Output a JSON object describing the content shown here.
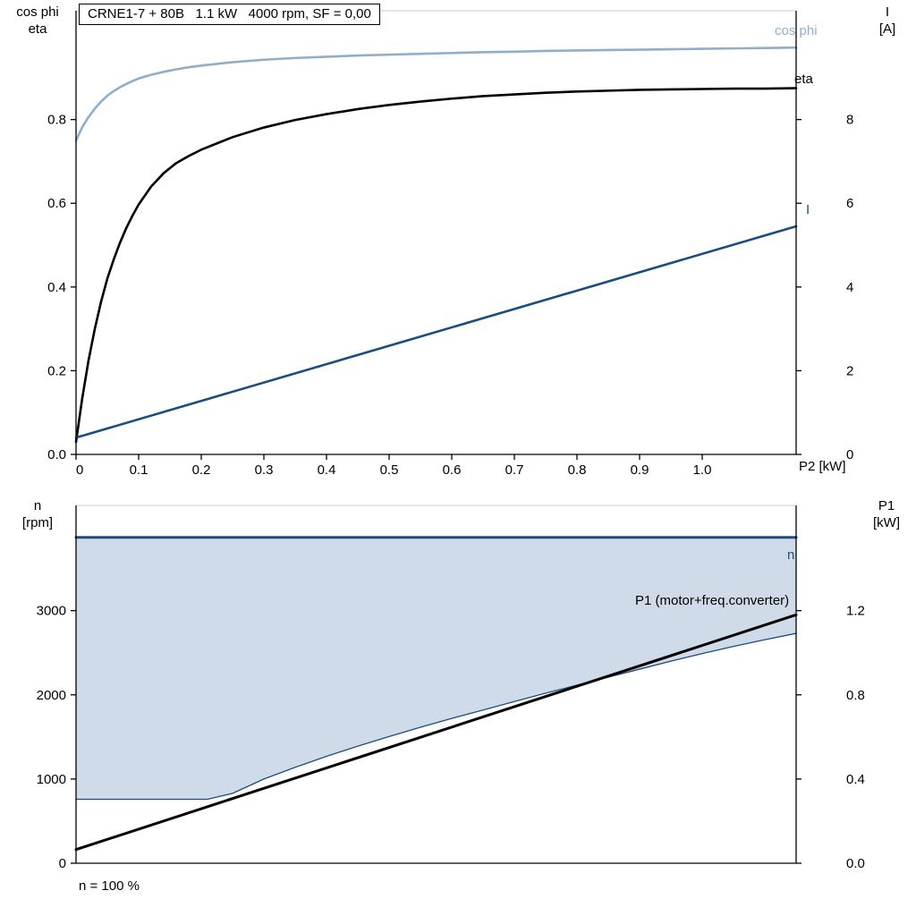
{
  "title_box": {
    "text": "CRNE1-7 + 80B   1.1 kW   4000 rpm, SF = 0,00"
  },
  "colors": {
    "light_blue": "#8FAEC9",
    "dark_blue": "#1B4E7E",
    "black": "#000000",
    "area_fill": "#CFDBE8"
  },
  "labels": {
    "top_left_line1": "cos phi",
    "top_left_line2": "eta",
    "top_right_line1": "I",
    "top_right_line2": "[A]",
    "x_axis_title": "P2 [kW]",
    "curve_cos_phi": "cos phi",
    "curve_eta": "eta",
    "curve_current": "I",
    "bottom_left_line1": "n",
    "bottom_left_line2": "[rpm]",
    "bottom_right_line1": "P1",
    "bottom_right_line2": "[kW]",
    "curve_speed": "n",
    "curve_p1": "P1 (motor+freq.converter)",
    "footnote": "n = 100 %"
  },
  "chart_data": [
    {
      "type": "line",
      "title": "CRNE1-7 + 80B   1.1 kW   4000 rpm, SF = 0,00",
      "x": {
        "min": 0,
        "max": 1.15,
        "label": "P2 [kW]",
        "ticks": [
          0,
          0.1,
          0.2,
          0.3,
          0.4,
          0.5,
          0.6,
          0.7,
          0.8,
          0.9,
          1.0
        ],
        "tick_labels": [
          "0",
          "0.1",
          "0.2",
          "0.3",
          "0.4",
          "0.5",
          "0.6",
          "0.7",
          "0.8",
          "0.9",
          "1.0"
        ]
      },
      "y_left": {
        "min": 0,
        "max": 1.06,
        "label": "cos phi / eta",
        "ticks": [
          0,
          0.2,
          0.4,
          0.6,
          0.8
        ],
        "tick_labels": [
          "0.0",
          "0.2",
          "0.4",
          "0.6",
          "0.8"
        ]
      },
      "y_right": {
        "min": 0,
        "max": 10.6,
        "label": "I [A]",
        "ticks": [
          0,
          2,
          4,
          6,
          8
        ],
        "tick_labels": [
          "0",
          "2",
          "4",
          "6",
          "8"
        ]
      },
      "series": [
        {
          "name": "cos phi",
          "axis": "left",
          "color": "light_blue",
          "width": 2.6,
          "points": [
            [
              0,
              0.75
            ],
            [
              0.01,
              0.782
            ],
            [
              0.02,
              0.806
            ],
            [
              0.03,
              0.826
            ],
            [
              0.04,
              0.843
            ],
            [
              0.05,
              0.857
            ],
            [
              0.06,
              0.868
            ],
            [
              0.07,
              0.877
            ],
            [
              0.08,
              0.885
            ],
            [
              0.09,
              0.892
            ],
            [
              0.1,
              0.898
            ],
            [
              0.12,
              0.907
            ],
            [
              0.14,
              0.914
            ],
            [
              0.16,
              0.92
            ],
            [
              0.18,
              0.925
            ],
            [
              0.2,
              0.929
            ],
            [
              0.25,
              0.937
            ],
            [
              0.3,
              0.943
            ],
            [
              0.35,
              0.947
            ],
            [
              0.4,
              0.95
            ],
            [
              0.45,
              0.953
            ],
            [
              0.5,
              0.955
            ],
            [
              0.55,
              0.957
            ],
            [
              0.6,
              0.959
            ],
            [
              0.65,
              0.961
            ],
            [
              0.7,
              0.962
            ],
            [
              0.75,
              0.964
            ],
            [
              0.8,
              0.965
            ],
            [
              0.85,
              0.966
            ],
            [
              0.9,
              0.967
            ],
            [
              0.95,
              0.968
            ],
            [
              1.0,
              0.969
            ],
            [
              1.05,
              0.97
            ],
            [
              1.1,
              0.971
            ],
            [
              1.15,
              0.972
            ]
          ]
        },
        {
          "name": "eta",
          "axis": "left",
          "color": "black",
          "width": 2.6,
          "points": [
            [
              0,
              0.03
            ],
            [
              0.01,
              0.135
            ],
            [
              0.02,
              0.225
            ],
            [
              0.03,
              0.3
            ],
            [
              0.04,
              0.365
            ],
            [
              0.05,
              0.42
            ],
            [
              0.06,
              0.465
            ],
            [
              0.07,
              0.505
            ],
            [
              0.08,
              0.54
            ],
            [
              0.09,
              0.57
            ],
            [
              0.1,
              0.597
            ],
            [
              0.12,
              0.64
            ],
            [
              0.14,
              0.672
            ],
            [
              0.16,
              0.696
            ],
            [
              0.18,
              0.713
            ],
            [
              0.2,
              0.728
            ],
            [
              0.25,
              0.758
            ],
            [
              0.3,
              0.781
            ],
            [
              0.35,
              0.799
            ],
            [
              0.4,
              0.813
            ],
            [
              0.45,
              0.825
            ],
            [
              0.5,
              0.835
            ],
            [
              0.55,
              0.843
            ],
            [
              0.6,
              0.85
            ],
            [
              0.65,
              0.856
            ],
            [
              0.7,
              0.86
            ],
            [
              0.75,
              0.864
            ],
            [
              0.8,
              0.867
            ],
            [
              0.85,
              0.869
            ],
            [
              0.9,
              0.871
            ],
            [
              0.95,
              0.872
            ],
            [
              1.0,
              0.873
            ],
            [
              1.05,
              0.874
            ],
            [
              1.1,
              0.874
            ],
            [
              1.15,
              0.875
            ]
          ]
        },
        {
          "name": "I",
          "axis": "right",
          "color": "dark_blue",
          "width": 2.6,
          "points": [
            [
              0,
              0.4
            ],
            [
              1.15,
              5.45
            ]
          ]
        }
      ]
    },
    {
      "type": "line",
      "x": {
        "min": 0,
        "max": 1.15,
        "label": "",
        "ticks": [],
        "tick_labels": []
      },
      "y_left": {
        "min": 0,
        "max": 4250,
        "label": "n [rpm]",
        "ticks": [
          0,
          1000,
          2000,
          3000
        ],
        "tick_labels": [
          "0",
          "1000",
          "2000",
          "3000"
        ]
      },
      "y_right": {
        "min": 0,
        "max": 1.7,
        "label": "P1 [kW]",
        "ticks": [
          0,
          0.4,
          0.8,
          1.2
        ],
        "tick_labels": [
          "0.0",
          "0.4",
          "0.8",
          "1.2"
        ]
      },
      "area": {
        "upper": "n",
        "lower": "n min",
        "fill": "area_fill"
      },
      "annotation": "n = 100 %",
      "series": [
        {
          "name": "n",
          "axis": "left",
          "color": "dark_blue",
          "width": 3,
          "points": [
            [
              0,
              3870
            ],
            [
              1.15,
              3870
            ]
          ]
        },
        {
          "name": "n min",
          "axis": "left",
          "color": "dark_blue",
          "width": 1.3,
          "points": [
            [
              0,
              760
            ],
            [
              0.21,
              760
            ],
            [
              0.25,
              830
            ],
            [
              0.3,
              1000
            ],
            [
              0.35,
              1140
            ],
            [
              0.4,
              1270
            ],
            [
              0.45,
              1390
            ],
            [
              0.5,
              1505
            ],
            [
              0.55,
              1615
            ],
            [
              0.6,
              1720
            ],
            [
              0.65,
              1820
            ],
            [
              0.7,
              1920
            ],
            [
              0.75,
              2020
            ],
            [
              0.8,
              2115
            ],
            [
              0.85,
              2210
            ],
            [
              0.9,
              2305
            ],
            [
              0.95,
              2400
            ],
            [
              1.0,
              2490
            ],
            [
              1.05,
              2575
            ],
            [
              1.1,
              2655
            ],
            [
              1.15,
              2730
            ]
          ]
        },
        {
          "name": "P1 (motor+freq.converter)",
          "axis": "right",
          "color": "black",
          "width": 3,
          "points": [
            [
              0,
              0.065
            ],
            [
              1.15,
              1.18
            ]
          ]
        }
      ]
    }
  ]
}
